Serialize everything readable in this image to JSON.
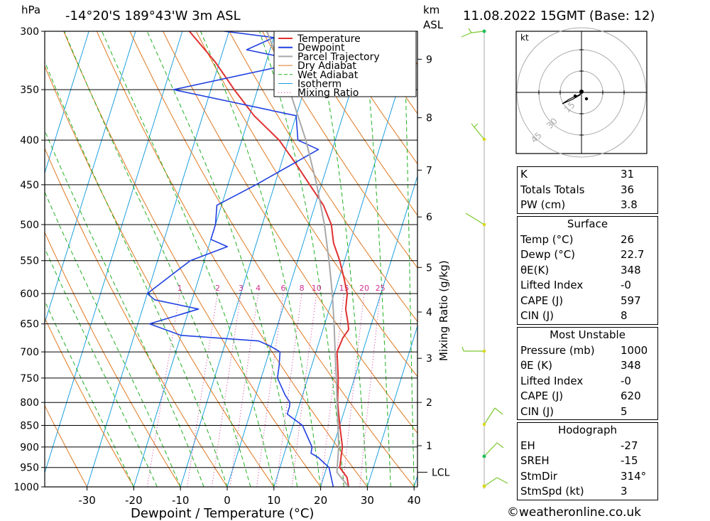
{
  "header": {
    "location": "-14°20'S  189°43'W  3m  ASL",
    "datetime": "11.08.2022  15GMT  (Base: 12)",
    "pressure_unit": "hPa",
    "height_unit_top": "km",
    "height_unit_bottom": "ASL",
    "x_axis_title": "Dewpoint / Temperature (°C)",
    "mixing_axis_title": "Mixing Ratio (g/kg)",
    "lcl_label": "LCL"
  },
  "footer": {
    "credit": "©weatheronline.co.uk"
  },
  "chart_data": {
    "type": "line",
    "subtype": "skew-T log-p diagram",
    "xlabel": "Dewpoint / Temperature (°C)",
    "ylabel": "hPa",
    "pressure_ticks": [
      300,
      350,
      400,
      450,
      500,
      550,
      600,
      650,
      700,
      750,
      800,
      850,
      900,
      950,
      1000
    ],
    "pressure_range": [
      300,
      1000
    ],
    "temperature_ticks": [
      -30,
      -20,
      -10,
      0,
      10,
      20,
      30,
      40
    ],
    "height_km_ticks": [
      {
        "label": "9",
        "p": 323
      },
      {
        "label": "8",
        "p": 377
      },
      {
        "label": "7",
        "p": 433
      },
      {
        "label": "6",
        "p": 490
      },
      {
        "label": "5",
        "p": 560
      },
      {
        "label": "4",
        "p": 630
      },
      {
        "label": "3",
        "p": 712
      },
      {
        "label": "2",
        "p": 800
      },
      {
        "label": "1",
        "p": 897
      }
    ],
    "lcl_pressure": 962,
    "mixing_ratio_labels": [
      "1",
      "2",
      "3",
      "4",
      "6",
      "8",
      "10",
      "15",
      "20",
      "25"
    ],
    "legend": [
      "Temperature",
      "Dewpoint",
      "Parcel Trajectory",
      "Dry Adiabat",
      "Wet Adiabat",
      "Isotherm",
      "Mixing Ratio"
    ],
    "legend_position": "top-center",
    "series": [
      {
        "name": "Temperature",
        "color": "#e03030",
        "points": [
          [
            1000,
            26.0
          ],
          [
            975,
            25.0
          ],
          [
            950,
            22.8
          ],
          [
            925,
            22.4
          ],
          [
            900,
            22.0
          ],
          [
            850,
            20.0
          ],
          [
            800,
            18.0
          ],
          [
            750,
            16.5
          ],
          [
            700,
            14.5
          ],
          [
            675,
            14.8
          ],
          [
            660,
            15.5
          ],
          [
            650,
            15.0
          ],
          [
            625,
            13.5
          ],
          [
            600,
            12.8
          ],
          [
            575,
            11.0
          ],
          [
            550,
            9.0
          ],
          [
            525,
            6.5
          ],
          [
            500,
            4.8
          ],
          [
            475,
            1.8
          ],
          [
            450,
            -2.5
          ],
          [
            425,
            -7.0
          ],
          [
            400,
            -12.0
          ],
          [
            375,
            -19.0
          ],
          [
            350,
            -25.0
          ],
          [
            325,
            -31.0
          ],
          [
            300,
            -38.5
          ]
        ]
      },
      {
        "name": "Dewpoint",
        "color": "#2040e0",
        "points": [
          [
            1000,
            22.7
          ],
          [
            950,
            20.5
          ],
          [
            925,
            17.5
          ],
          [
            915,
            15.7
          ],
          [
            900,
            15.5
          ],
          [
            850,
            12.0
          ],
          [
            825,
            8.0
          ],
          [
            810,
            8.0
          ],
          [
            800,
            7.8
          ],
          [
            785,
            6.3
          ],
          [
            750,
            3.5
          ],
          [
            725,
            3.0
          ],
          [
            700,
            2.3
          ],
          [
            690,
            0.0
          ],
          [
            680,
            -3.0
          ],
          [
            670,
            -20.0
          ],
          [
            650,
            -27.5
          ],
          [
            625,
            -18.0
          ],
          [
            610,
            -28.0
          ],
          [
            600,
            -30.0
          ],
          [
            550,
            -23.0
          ],
          [
            530,
            -16.0
          ],
          [
            520,
            -20.0
          ],
          [
            500,
            -20.0
          ],
          [
            475,
            -21.0
          ],
          [
            450,
            -14.0
          ],
          [
            410,
            -3.0
          ],
          [
            400,
            -8.0
          ],
          [
            375,
            -10.0
          ],
          [
            350,
            -38.0
          ],
          [
            325,
            -12.0
          ],
          [
            315,
            -25.0
          ],
          [
            305,
            -20.0
          ],
          [
            300,
            -31.0
          ]
        ]
      },
      {
        "name": "Parcel Trajectory",
        "color": "#a8a8a8",
        "points": [
          [
            1000,
            26.0
          ],
          [
            962,
            22.5
          ],
          [
            900,
            21.2
          ],
          [
            850,
            19.6
          ],
          [
            800,
            17.9
          ],
          [
            750,
            16.1
          ],
          [
            700,
            14.1
          ],
          [
            650,
            12.0
          ],
          [
            600,
            9.6
          ],
          [
            550,
            6.7
          ],
          [
            500,
            3.3
          ],
          [
            450,
            -1.0
          ],
          [
            400,
            -6.3
          ],
          [
            350,
            -13.2
          ],
          [
            300,
            -21.9
          ]
        ]
      }
    ]
  },
  "hodograph": {
    "unit_label": "kt",
    "ring_labels": [
      "15",
      "30",
      "45"
    ]
  },
  "indices": [
    {
      "label": "K",
      "value": "31"
    },
    {
      "label": "Totals Totals",
      "value": "36"
    },
    {
      "label": "PW (cm)",
      "value": "3.8"
    }
  ],
  "surface": {
    "title": "Surface",
    "rows": [
      {
        "label": "Temp (°C)",
        "value": "26"
      },
      {
        "label": "Dewp (°C)",
        "value": "22.7"
      },
      {
        "label": "θE(K)",
        "value": "348"
      },
      {
        "label": "Lifted Index",
        "value": "-0"
      },
      {
        "label": "CAPE (J)",
        "value": "597"
      },
      {
        "label": "CIN (J)",
        "value": "8"
      }
    ]
  },
  "most_unstable": {
    "title": "Most Unstable",
    "rows": [
      {
        "label": "Pressure (mb)",
        "value": "1000"
      },
      {
        "label": "θE (K)",
        "value": "348"
      },
      {
        "label": "Lifted Index",
        "value": "-0"
      },
      {
        "label": "CAPE (J)",
        "value": "620"
      },
      {
        "label": "CIN (J)",
        "value": "5"
      }
    ]
  },
  "hodograph_table": {
    "title": "Hodograph",
    "rows": [
      {
        "label": "EH",
        "value": "-27"
      },
      {
        "label": "SREH",
        "value": "-15"
      },
      {
        "label": "StmDir",
        "value": "314°"
      },
      {
        "label": "StmSpd (kt)",
        "value": "3"
      }
    ]
  }
}
